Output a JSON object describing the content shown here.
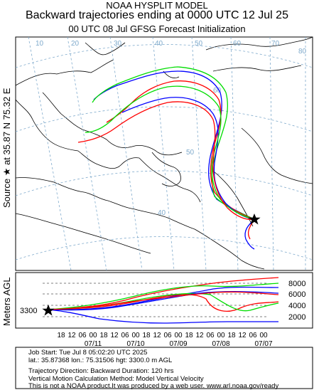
{
  "header": {
    "model": "NOAA HYSPLIT MODEL",
    "title": "Backward trajectories ending at 0000 UTC 12 Jul 25",
    "subtitle": "00 UTC 08 Jul    GFSG  Forecast Initialization"
  },
  "left_label": "Source ★ at   35.87 N   75.32 E",
  "map": {
    "lat_labels": [
      "60",
      "50",
      "40"
    ],
    "lon_labels": [
      "10",
      "20",
      "30",
      "40",
      "50",
      "60",
      "70",
      "80"
    ],
    "source_lat": 35.87,
    "source_lon": 75.32
  },
  "vertical": {
    "ylabel": "Meters AGL",
    "start_height_label": "3300",
    "ticks": [
      "8000",
      "6000",
      "4000",
      "2000"
    ],
    "hour_ticks": [
      "18",
      "12",
      "06",
      "00",
      "18",
      "12",
      "06",
      "00",
      "18",
      "12",
      "06",
      "00",
      "18",
      "12",
      "06",
      "00",
      "18",
      "12",
      "06",
      "00"
    ],
    "date_ticks": [
      "07/11",
      "07/10",
      "07/09",
      "07/08",
      "07/07"
    ]
  },
  "info": {
    "job_start": "Job Start: Tue Jul  8 05:02:20 UTC 2025",
    "location": "lat.: 35.87368    lon.: 75.31506    hgt: 3300.0 m AGL",
    "direction": "Trajectory Direction: Backward          Duration: 120 hrs",
    "method": "Vertical Motion Calculation Method: Model Vertical Velocity",
    "disclaimer": "This is not a NOAA product.It was produced by a web user. www.arl.noaa.gov/ready"
  },
  "colors": {
    "series_red": "#ff0000",
    "series_blue": "#0000ff",
    "series_green": "#00dd00",
    "grid": "#7faacc"
  }
}
